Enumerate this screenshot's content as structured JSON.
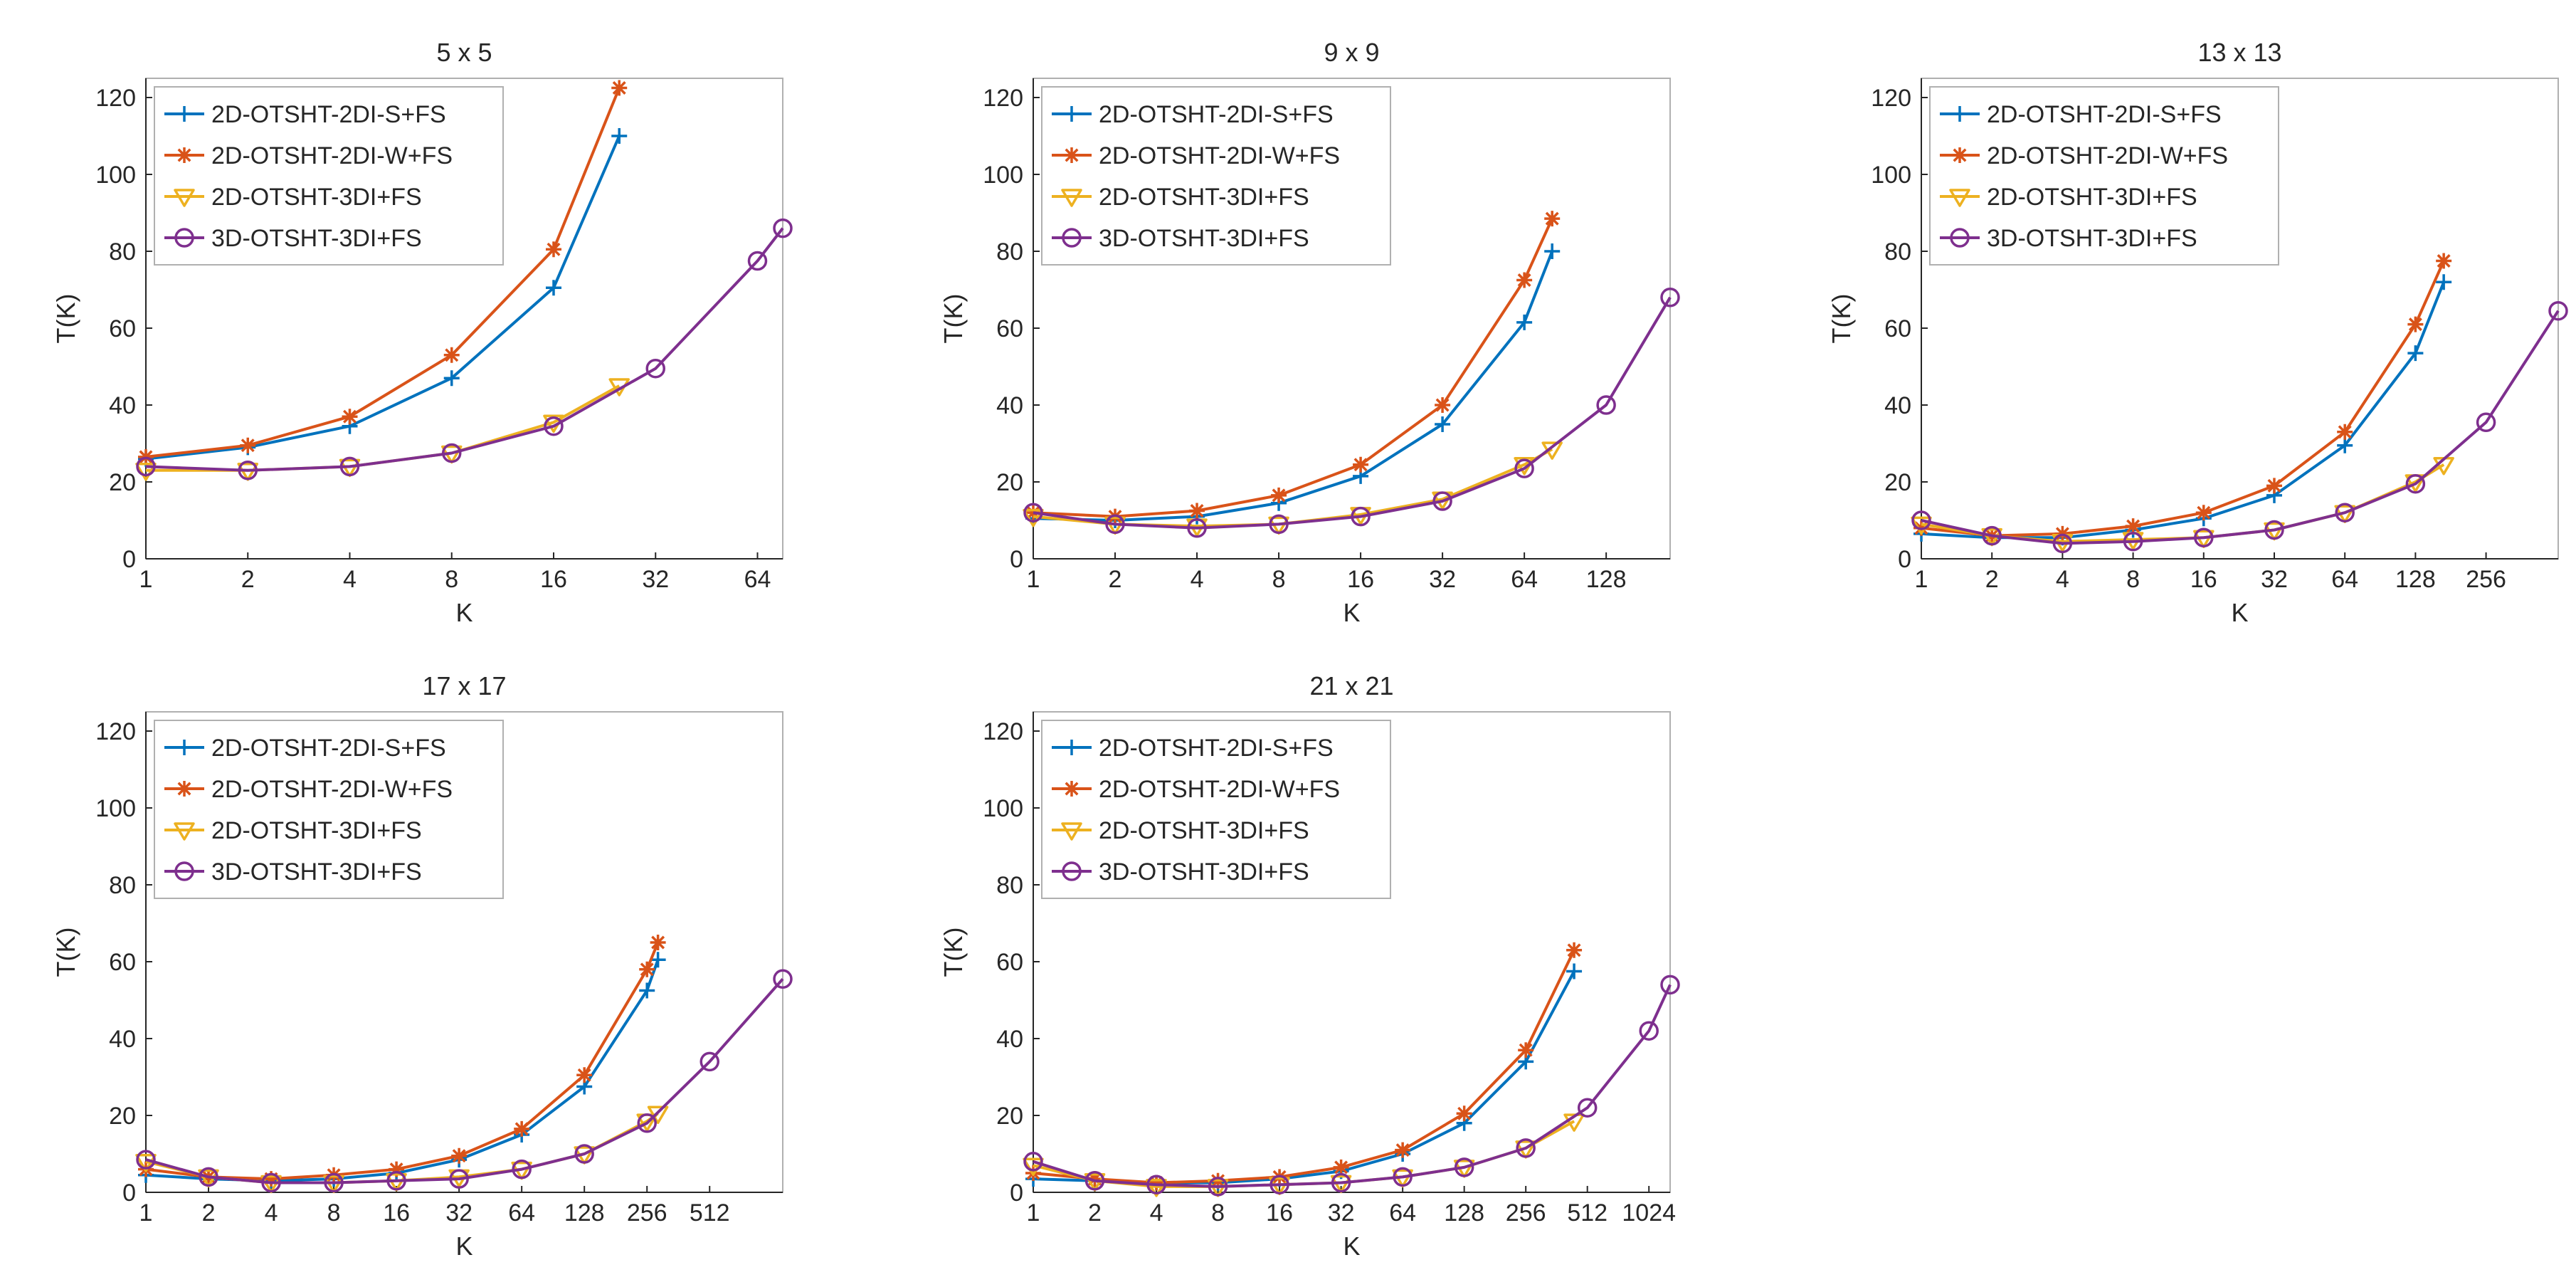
{
  "colors": {
    "s_fs": "#0072BD",
    "w_fs": "#D95319",
    "di3_fs": "#EDB120",
    "three_d": "#7E2F8E",
    "axis": "#262626",
    "box": "#b0b0b0"
  },
  "legend_labels": [
    "2D-OTSHT-2DI-S+FS",
    "2D-OTSHT-2DI-W+FS",
    "2D-OTSHT-3DI+FS",
    "3D-OTSHT-3DI+FS"
  ],
  "chart_data": [
    {
      "type": "line",
      "title": "5 x 5",
      "xlabel": "K",
      "ylabel": "T(K)",
      "xscale": "log2",
      "xlim": [
        1,
        76
      ],
      "ylim": [
        0,
        125
      ],
      "xticks": [
        1,
        2,
        4,
        8,
        16,
        32,
        64
      ],
      "xtick_labels": [
        "1",
        "2",
        "4",
        "8",
        "16",
        "32",
        "64"
      ],
      "yticks": [
        0,
        20,
        40,
        60,
        80,
        100,
        120
      ],
      "legend_position": "top-left",
      "series": [
        {
          "name": "2D-OTSHT-2DI-S+FS",
          "marker": "plus",
          "x": [
            1,
            2,
            4,
            8,
            16,
            25
          ],
          "y": [
            26,
            29,
            34.5,
            47,
            70.5,
            110
          ]
        },
        {
          "name": "2D-OTSHT-2DI-W+FS",
          "marker": "star",
          "x": [
            1,
            2,
            4,
            8,
            16,
            25
          ],
          "y": [
            26.5,
            29.5,
            37,
            53,
            80.5,
            122.5
          ]
        },
        {
          "name": "2D-OTSHT-3DI+FS",
          "marker": "triangle-down",
          "x": [
            1,
            2,
            4,
            8,
            16,
            25
          ],
          "y": [
            23,
            23,
            24,
            27.5,
            35.5,
            45
          ]
        },
        {
          "name": "3D-OTSHT-3DI+FS",
          "marker": "circle",
          "x": [
            1,
            2,
            4,
            8,
            16,
            32,
            64,
            76
          ],
          "y": [
            24,
            23,
            24,
            27.5,
            34.5,
            49.5,
            77.5,
            86
          ]
        }
      ]
    },
    {
      "type": "line",
      "title": "9 x 9",
      "xlabel": "K",
      "ylabel": "T(K)",
      "xscale": "log2",
      "xlim": [
        1,
        220
      ],
      "ylim": [
        0,
        125
      ],
      "xticks": [
        1,
        2,
        4,
        8,
        16,
        32,
        64,
        128
      ],
      "xtick_labels": [
        "1",
        "2",
        "4",
        "8",
        "16",
        "32",
        "64",
        "128"
      ],
      "yticks": [
        0,
        20,
        40,
        60,
        80,
        100,
        120
      ],
      "legend_position": "top-left",
      "series": [
        {
          "name": "2D-OTSHT-2DI-S+FS",
          "marker": "plus",
          "x": [
            1,
            2,
            4,
            8,
            16,
            32,
            64,
            81
          ],
          "y": [
            10.5,
            10,
            11,
            14.5,
            21.5,
            35,
            61.5,
            80
          ]
        },
        {
          "name": "2D-OTSHT-2DI-W+FS",
          "marker": "star",
          "x": [
            1,
            2,
            4,
            8,
            16,
            32,
            64,
            81
          ],
          "y": [
            12,
            11,
            12.5,
            16.5,
            24.5,
            40,
            72.5,
            88.5
          ]
        },
        {
          "name": "2D-OTSHT-3DI+FS",
          "marker": "triangle-down",
          "x": [
            1,
            2,
            4,
            8,
            16,
            32,
            64,
            81
          ],
          "y": [
            11,
            9,
            8.5,
            9,
            11.5,
            15.5,
            24.5,
            28.5
          ]
        },
        {
          "name": "3D-OTSHT-3DI+FS",
          "marker": "circle",
          "x": [
            1,
            2,
            4,
            8,
            16,
            32,
            64,
            128,
            220
          ],
          "y": [
            12,
            9,
            8,
            9,
            11,
            15,
            23.5,
            40,
            68
          ]
        }
      ]
    },
    {
      "type": "line",
      "title": "13 x 13",
      "xlabel": "K",
      "ylabel": "T(K)",
      "xscale": "log2",
      "xlim": [
        1,
        520
      ],
      "ylim": [
        0,
        125
      ],
      "xticks": [
        1,
        2,
        4,
        8,
        16,
        32,
        64,
        128,
        256
      ],
      "xtick_labels": [
        "1",
        "2",
        "4",
        "8",
        "16",
        "32",
        "64",
        "128",
        "256"
      ],
      "yticks": [
        0,
        20,
        40,
        60,
        80,
        100,
        120
      ],
      "legend_position": "top-left",
      "series": [
        {
          "name": "2D-OTSHT-2DI-S+FS",
          "marker": "plus",
          "x": [
            1,
            2,
            4,
            8,
            16,
            32,
            64,
            128,
            169
          ],
          "y": [
            6.5,
            5.5,
            5.5,
            7.5,
            10.5,
            16.5,
            29.5,
            53.5,
            72
          ]
        },
        {
          "name": "2D-OTSHT-2DI-W+FS",
          "marker": "star",
          "x": [
            1,
            2,
            4,
            8,
            16,
            32,
            64,
            128,
            169
          ],
          "y": [
            8,
            6,
            6.5,
            8.5,
            12,
            19,
            33,
            61,
            77.5
          ]
        },
        {
          "name": "2D-OTSHT-3DI+FS",
          "marker": "triangle-down",
          "x": [
            1,
            2,
            4,
            8,
            16,
            32,
            64,
            128,
            169
          ],
          "y": [
            9,
            6,
            4.5,
            5,
            5.5,
            7.5,
            12,
            20,
            24.5
          ]
        },
        {
          "name": "3D-OTSHT-3DI+FS",
          "marker": "circle",
          "x": [
            1,
            2,
            4,
            8,
            16,
            32,
            64,
            128,
            256,
            520
          ],
          "y": [
            10,
            6,
            4,
            4.5,
            5.5,
            7.5,
            12,
            19.5,
            35.5,
            64.5
          ]
        }
      ]
    },
    {
      "type": "line",
      "title": "17 x 17",
      "xlabel": "K",
      "ylabel": "T(K)",
      "xscale": "log2",
      "xlim": [
        1,
        1150
      ],
      "ylim": [
        0,
        125
      ],
      "xticks": [
        1,
        2,
        4,
        8,
        16,
        32,
        64,
        128,
        256,
        512
      ],
      "xtick_labels": [
        "1",
        "2",
        "4",
        "8",
        "16",
        "32",
        "64",
        "128",
        "256",
        "512"
      ],
      "yticks": [
        0,
        20,
        40,
        60,
        80,
        100,
        120
      ],
      "legend_position": "top-left",
      "series": [
        {
          "name": "2D-OTSHT-2DI-S+FS",
          "marker": "plus",
          "x": [
            1,
            2,
            4,
            8,
            16,
            32,
            64,
            128,
            256,
            289
          ],
          "y": [
            4.5,
            3.5,
            3,
            3.5,
            5,
            8.5,
            15,
            27.5,
            52.5,
            60.5
          ]
        },
        {
          "name": "2D-OTSHT-2DI-W+FS",
          "marker": "star",
          "x": [
            1,
            2,
            4,
            8,
            16,
            32,
            64,
            128,
            256,
            289
          ],
          "y": [
            6,
            4,
            3.5,
            4.5,
            6,
            9.5,
            16.5,
            30.5,
            58,
            65
          ]
        },
        {
          "name": "2D-OTSHT-3DI+FS",
          "marker": "triangle-down",
          "x": [
            1,
            2,
            4,
            8,
            16,
            32,
            64,
            128,
            256,
            289
          ],
          "y": [
            8,
            4,
            2.5,
            2.5,
            3,
            4,
            6,
            10,
            18.5,
            20.5
          ]
        },
        {
          "name": "3D-OTSHT-3DI+FS",
          "marker": "circle",
          "x": [
            1,
            2,
            4,
            8,
            16,
            32,
            64,
            128,
            256,
            512,
            1150
          ],
          "y": [
            8.5,
            4,
            2.5,
            2.5,
            3,
            3.5,
            6,
            10,
            18,
            34,
            55.5
          ]
        }
      ]
    },
    {
      "type": "line",
      "title": "21 x 21",
      "xlabel": "K",
      "ylabel": "T(K)",
      "xscale": "log2",
      "xlim": [
        1,
        1300
      ],
      "ylim": [
        0,
        125
      ],
      "xticks": [
        1,
        2,
        4,
        8,
        16,
        32,
        64,
        128,
        256,
        512,
        1024
      ],
      "xtick_labels": [
        "1",
        "2",
        "4",
        "8",
        "16",
        "32",
        "64",
        "128",
        "256",
        "512",
        "1024"
      ],
      "yticks": [
        0,
        20,
        40,
        60,
        80,
        100,
        120
      ],
      "legend_position": "top-left",
      "series": [
        {
          "name": "2D-OTSHT-2DI-S+FS",
          "marker": "plus",
          "x": [
            1,
            2,
            4,
            8,
            16,
            32,
            64,
            128,
            256,
            441
          ],
          "y": [
            3.5,
            3,
            2.5,
            2.5,
            3.5,
            5.5,
            10,
            18,
            34,
            57.5
          ]
        },
        {
          "name": "2D-OTSHT-2DI-W+FS",
          "marker": "star",
          "x": [
            1,
            2,
            4,
            8,
            16,
            32,
            64,
            128,
            256,
            441
          ],
          "y": [
            5,
            3.5,
            2.5,
            3,
            4,
            6.5,
            11,
            20.5,
            37,
            63
          ]
        },
        {
          "name": "2D-OTSHT-3DI+FS",
          "marker": "triangle-down",
          "x": [
            1,
            2,
            4,
            8,
            16,
            32,
            64,
            128,
            256,
            441
          ],
          "y": [
            7,
            3,
            1.5,
            1.5,
            2,
            2.5,
            4,
            6.5,
            11.5,
            18.5
          ]
        },
        {
          "name": "3D-OTSHT-3DI+FS",
          "marker": "circle",
          "x": [
            1,
            2,
            4,
            8,
            16,
            32,
            64,
            128,
            256,
            512,
            1024,
            1300
          ],
          "y": [
            8,
            3,
            2,
            1.5,
            2,
            2.5,
            4,
            6.5,
            11.5,
            22,
            42,
            54
          ]
        }
      ]
    }
  ]
}
